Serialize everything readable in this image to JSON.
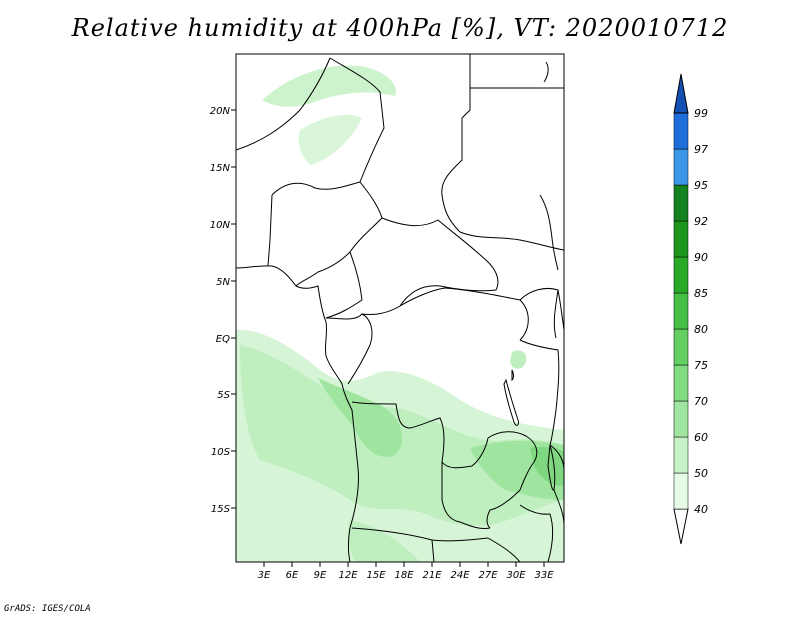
{
  "title": "Relative humidity at 400hPa [%], VT: 2020010712",
  "credit": "GrADS: IGES/COLA",
  "map": {
    "lat_ticks": [
      "20N",
      "15N",
      "10N",
      "5N",
      "EQ",
      "5S",
      "10S",
      "15S"
    ],
    "lon_ticks": [
      "3E",
      "6E",
      "9E",
      "12E",
      "15E",
      "18E",
      "21E",
      "24E",
      "27E",
      "30E",
      "33E"
    ]
  },
  "legend": {
    "labels": [
      "40",
      "50",
      "60",
      "70",
      "75",
      "80",
      "85",
      "90",
      "92",
      "95",
      "97",
      "99"
    ],
    "colors": [
      "#ffffff",
      "#e6fae6",
      "#c8f2c8",
      "#a0e6a0",
      "#82dc82",
      "#64d064",
      "#46c046",
      "#28aa28",
      "#1e961e",
      "#14821e",
      "#3c96e6",
      "#1e6edc",
      "#1450b4"
    ]
  }
}
